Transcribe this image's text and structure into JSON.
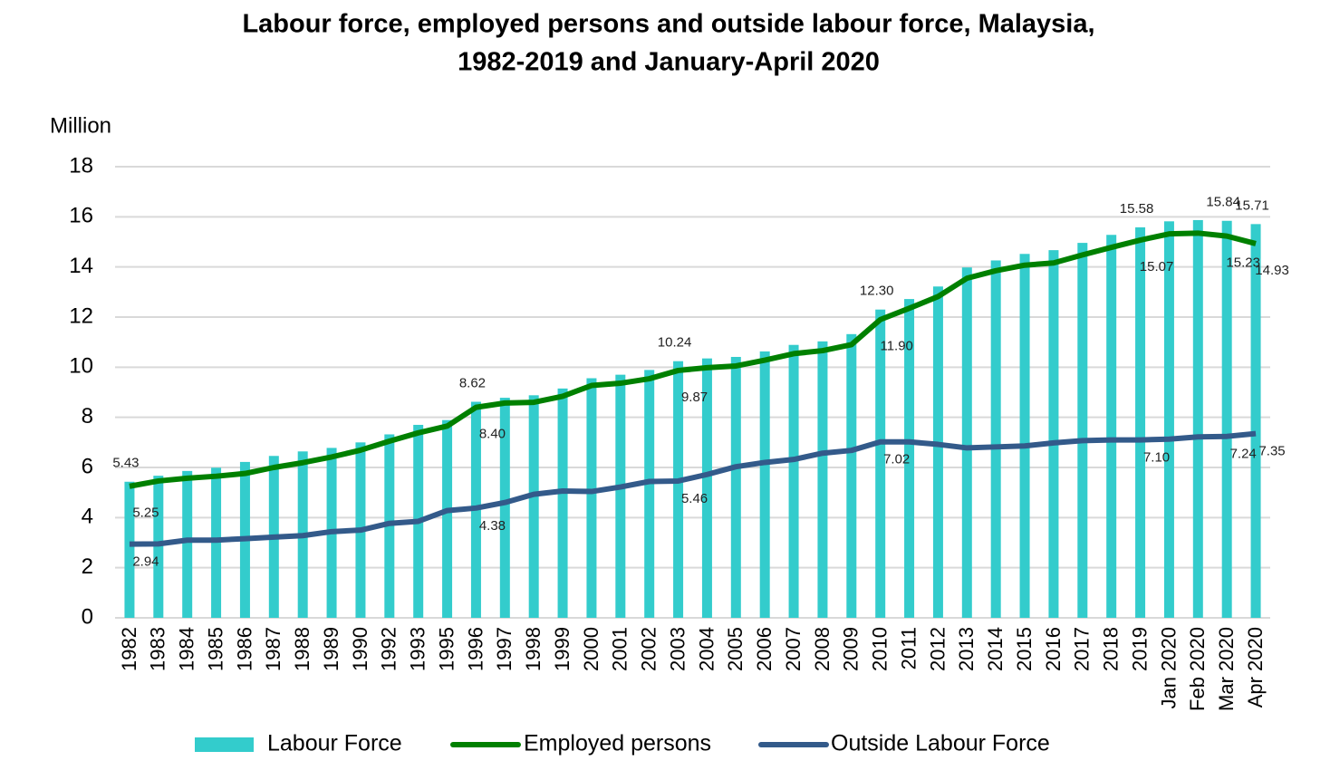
{
  "chart_data": {
    "type": "bar-line",
    "title": [
      "Labour force, employed persons and outside labour force, Malaysia,",
      "1982-2019 and January-April 2020"
    ],
    "y_label": "Million",
    "categories": [
      "1982",
      "1983",
      "1984",
      "1985",
      "1986",
      "1987",
      "1988",
      "1989",
      "1990",
      "1992",
      "1993",
      "1995",
      "1996",
      "1997",
      "1998",
      "1999",
      "2000",
      "2001",
      "2002",
      "2003",
      "2004",
      "2005",
      "2006",
      "2007",
      "2008",
      "2009",
      "2010",
      "2011",
      "2012",
      "2013",
      "2014",
      "2015",
      "2016",
      "2017",
      "2018",
      "2019",
      "Jan 2020",
      "Feb 2020",
      "Mar 2020",
      "Apr 2020"
    ],
    "series": [
      {
        "name": "Labour Force",
        "kind": "bar",
        "color": "#33cccc",
        "values": [
          5.43,
          5.67,
          5.86,
          5.99,
          6.22,
          6.46,
          6.64,
          6.78,
          7.0,
          7.32,
          7.7,
          7.89,
          8.62,
          8.78,
          8.88,
          9.15,
          9.56,
          9.7,
          9.89,
          10.24,
          10.35,
          10.41,
          10.63,
          10.89,
          11.03,
          11.32,
          12.3,
          12.72,
          13.22,
          13.98,
          14.26,
          14.52,
          14.67,
          14.96,
          15.28,
          15.58,
          15.82,
          15.87,
          15.84,
          15.71
        ],
        "value_labels": [
          "5.43",
          null,
          null,
          null,
          null,
          null,
          null,
          null,
          null,
          null,
          null,
          null,
          "8.62",
          null,
          null,
          null,
          null,
          null,
          null,
          "10.24",
          null,
          null,
          null,
          null,
          null,
          null,
          "12.30",
          null,
          null,
          null,
          null,
          null,
          null,
          null,
          null,
          "15.58",
          null,
          null,
          "15.84",
          "15.71"
        ]
      },
      {
        "name": "Employed persons",
        "kind": "line",
        "color": "#008000",
        "values": [
          5.25,
          5.46,
          5.57,
          5.65,
          5.76,
          6.0,
          6.19,
          6.42,
          6.69,
          7.05,
          7.38,
          7.65,
          8.4,
          8.57,
          8.6,
          8.84,
          9.27,
          9.36,
          9.54,
          9.87,
          9.98,
          10.05,
          10.28,
          10.54,
          10.66,
          10.9,
          11.9,
          12.35,
          12.82,
          13.55,
          13.85,
          14.07,
          14.16,
          14.48,
          14.78,
          15.07,
          15.32,
          15.35,
          15.23,
          14.93
        ],
        "value_labels": [
          "5.25",
          null,
          null,
          null,
          null,
          null,
          null,
          null,
          null,
          null,
          null,
          null,
          "8.40",
          null,
          null,
          null,
          null,
          null,
          null,
          "9.87",
          null,
          null,
          null,
          null,
          null,
          null,
          "11.90",
          null,
          null,
          null,
          null,
          null,
          null,
          null,
          null,
          "15.07",
          null,
          null,
          "15.23",
          "14.93"
        ]
      },
      {
        "name": "Outside Labour Force",
        "kind": "line",
        "color": "#335a8a",
        "values": [
          2.94,
          2.95,
          3.1,
          3.1,
          3.16,
          3.22,
          3.28,
          3.44,
          3.5,
          3.77,
          3.85,
          4.28,
          4.38,
          4.6,
          4.93,
          5.06,
          5.04,
          5.22,
          5.44,
          5.46,
          5.72,
          6.03,
          6.2,
          6.32,
          6.57,
          6.68,
          7.02,
          7.02,
          6.92,
          6.78,
          6.82,
          6.86,
          6.98,
          7.07,
          7.1,
          7.1,
          7.13,
          7.22,
          7.24,
          7.35
        ],
        "value_labels": [
          "2.94",
          null,
          null,
          null,
          null,
          null,
          null,
          null,
          null,
          null,
          null,
          null,
          "4.38",
          null,
          null,
          null,
          null,
          null,
          null,
          "5.46",
          null,
          null,
          null,
          null,
          null,
          null,
          "7.02",
          null,
          null,
          null,
          null,
          null,
          null,
          null,
          null,
          "7.10",
          null,
          null,
          "7.24",
          "7.35"
        ]
      }
    ],
    "ylim": [
      0,
      18
    ],
    "yticks": [
      0,
      2,
      4,
      6,
      8,
      10,
      12,
      14,
      16,
      18
    ],
    "grid": true,
    "legend": "bottom"
  }
}
